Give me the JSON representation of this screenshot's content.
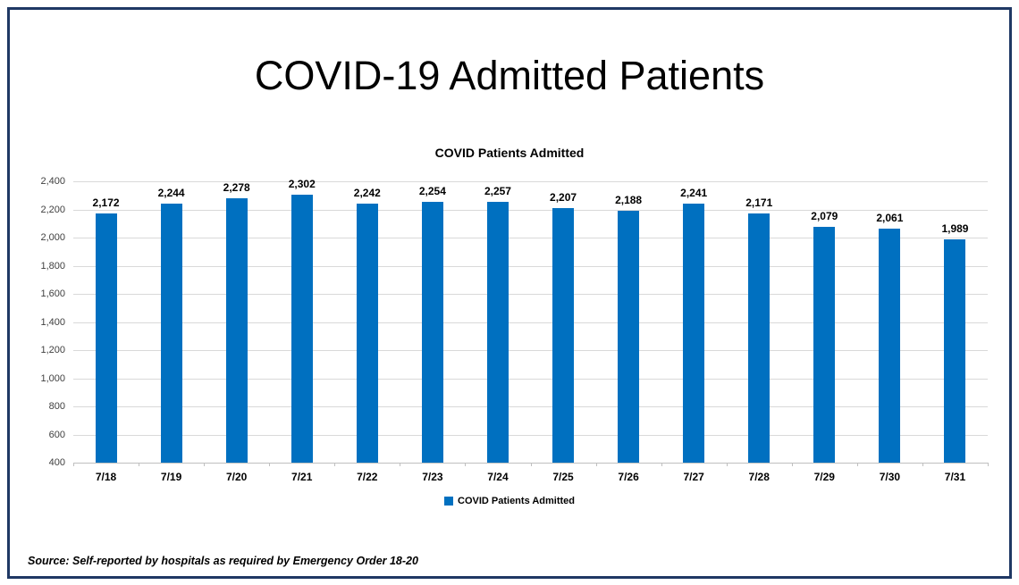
{
  "page": {
    "title": "COVID-19 Admitted Patients",
    "source_note": "Source: Self-reported by hospitals as required by Emergency Order 18-20",
    "border_color": "#1f3864"
  },
  "chart_data": {
    "type": "bar",
    "title": "COVID Patients Admitted",
    "categories": [
      "7/18",
      "7/19",
      "7/20",
      "7/21",
      "7/22",
      "7/23",
      "7/24",
      "7/25",
      "7/26",
      "7/27",
      "7/28",
      "7/29",
      "7/30",
      "7/31"
    ],
    "values": [
      2172,
      2244,
      2278,
      2302,
      2242,
      2254,
      2257,
      2207,
      2188,
      2241,
      2171,
      2079,
      2061,
      1989
    ],
    "value_labels": [
      "2,172",
      "2,244",
      "2,278",
      "2,302",
      "2,242",
      "2,254",
      "2,257",
      "2,207",
      "2,188",
      "2,241",
      "2,171",
      "2,079",
      "2,061",
      "1,989"
    ],
    "xlabel": "",
    "ylabel": "",
    "ylim": [
      400,
      2400
    ],
    "ytick_step": 200,
    "ytick_labels": [
      "400",
      "600",
      "800",
      "1,000",
      "1,200",
      "1,400",
      "1,600",
      "1,800",
      "2,000",
      "2,200",
      "2,400"
    ],
    "grid": true,
    "bar_color": "#0070c0",
    "gridline_color": "#d9d9d9",
    "axis_color": "#bfbfbf",
    "legend": {
      "label": "COVID Patients Admitted",
      "swatch_color": "#0070c0",
      "position": "bottom"
    }
  }
}
